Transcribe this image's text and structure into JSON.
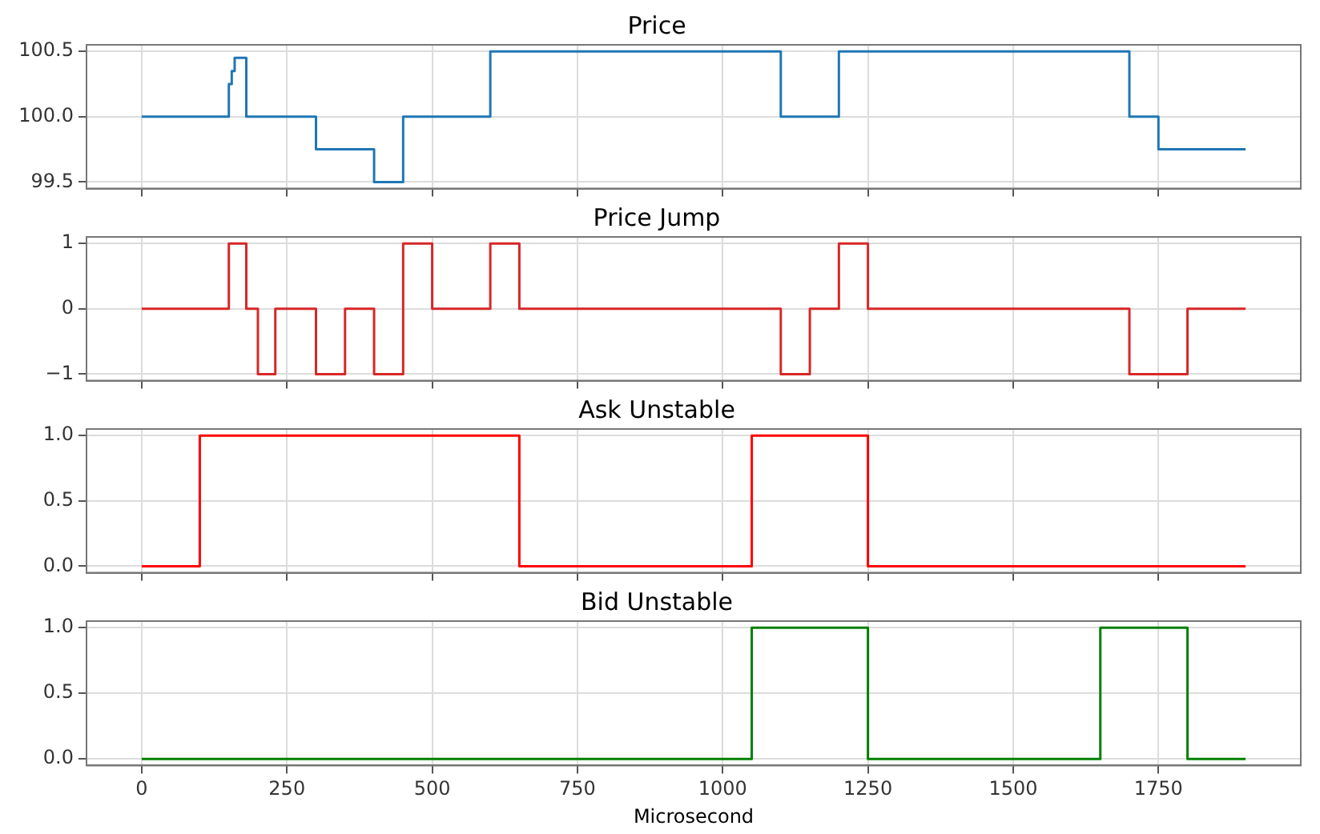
{
  "chart_data": [
    {
      "type": "step",
      "title": "Price",
      "x": [
        0,
        150,
        155,
        160,
        180,
        300,
        400,
        450,
        600,
        1100,
        1200,
        1700,
        1750,
        1900
      ],
      "series": [
        {
          "color": "#1f77b4",
          "values": [
            100,
            100.25,
            100.35,
            100.45,
            100,
            99.75,
            99.5,
            100,
            100.5,
            100,
            100.5,
            100,
            99.75,
            99.75
          ]
        }
      ],
      "xlim": [
        -95,
        1995
      ],
      "xticks": [
        {
          "value": 0,
          "label": null
        },
        {
          "value": 250,
          "label": null
        },
        {
          "value": 500,
          "label": null
        },
        {
          "value": 750,
          "label": null
        },
        {
          "value": 1000,
          "label": null
        },
        {
          "value": 1250,
          "label": null
        },
        {
          "value": 1500,
          "label": null
        },
        {
          "value": 1750,
          "label": null
        }
      ],
      "ylim": [
        99.45,
        100.55
      ],
      "yticks": [
        99.5,
        {
          "value": 100,
          "label": "100.0"
        },
        100.5
      ],
      "grid": true,
      "tick_labels": "y",
      "legend": false
    },
    {
      "type": "step",
      "title": "Price Jump",
      "x": [
        0,
        150,
        180,
        200,
        230,
        300,
        350,
        400,
        450,
        500,
        600,
        650,
        1100,
        1150,
        1200,
        1250,
        1700,
        1800,
        1900
      ],
      "series": [
        {
          "color": "#d62728",
          "values": [
            0,
            1,
            0,
            -1,
            0,
            -1,
            0,
            -1,
            1,
            0,
            1,
            0,
            -1,
            0,
            1,
            0,
            -1,
            0,
            0
          ]
        }
      ],
      "xlim": [
        -95,
        1995
      ],
      "xticks": [
        {
          "value": 0,
          "label": null
        },
        {
          "value": 250,
          "label": null
        },
        {
          "value": 500,
          "label": null
        },
        {
          "value": 750,
          "label": null
        },
        {
          "value": 1000,
          "label": null
        },
        {
          "value": 1250,
          "label": null
        },
        {
          "value": 1500,
          "label": null
        },
        {
          "value": 1750,
          "label": null
        }
      ],
      "ylim": [
        -1.1,
        1.1
      ],
      "yticks": [
        {
          "value": -1,
          "label": "−1"
        },
        0,
        1
      ],
      "grid": true,
      "tick_labels": "y",
      "legend": false
    },
    {
      "type": "step",
      "title": "Ask Unstable",
      "x": [
        0,
        100,
        650,
        1050,
        1250,
        1900
      ],
      "series": [
        {
          "color": "#ff0000",
          "values": [
            0,
            1,
            0,
            1,
            0,
            0
          ]
        }
      ],
      "xlim": [
        -95,
        1995
      ],
      "xticks": [
        {
          "value": 0,
          "label": null
        },
        {
          "value": 250,
          "label": null
        },
        {
          "value": 500,
          "label": null
        },
        {
          "value": 750,
          "label": null
        },
        {
          "value": 1000,
          "label": null
        },
        {
          "value": 1250,
          "label": null
        },
        {
          "value": 1500,
          "label": null
        },
        {
          "value": 1750,
          "label": null
        }
      ],
      "ylim": [
        -0.05,
        1.05
      ],
      "yticks": [
        {
          "value": 0,
          "label": "0.0"
        },
        0.5,
        {
          "value": 1,
          "label": "1.0"
        }
      ],
      "grid": true,
      "tick_labels": "y",
      "legend": false
    },
    {
      "type": "step",
      "title": "Bid Unstable",
      "xlabel": "Microsecond",
      "x": [
        0,
        1050,
        1250,
        1650,
        1800,
        1900
      ],
      "series": [
        {
          "color": "#008000",
          "values": [
            0,
            1,
            0,
            1,
            0,
            0
          ]
        }
      ],
      "xlim": [
        -95,
        1995
      ],
      "xticks": [
        0,
        250,
        500,
        750,
        1000,
        1250,
        1500,
        1750
      ],
      "ylim": [
        -0.05,
        1.05
      ],
      "yticks": [
        {
          "value": 0,
          "label": "0.0"
        },
        0.5,
        {
          "value": 1,
          "label": "1.0"
        }
      ],
      "grid": true,
      "legend": false
    }
  ]
}
